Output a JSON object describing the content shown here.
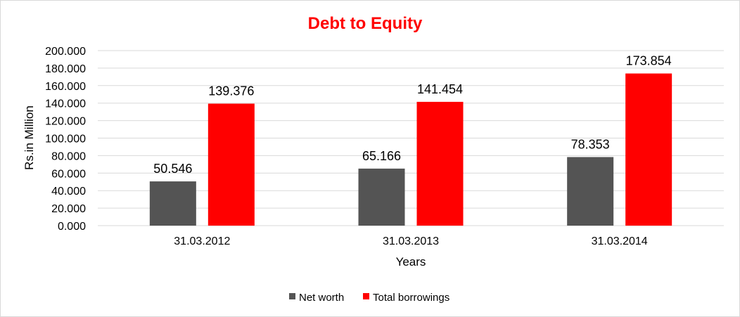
{
  "chart_data": {
    "type": "bar",
    "title": "Debt to Equity",
    "xlabel": "Years",
    "ylabel": "Rs.in Million",
    "categories": [
      "31.03.2012",
      "31.03.2013",
      "31.03.2014"
    ],
    "series": [
      {
        "name": "Net worth",
        "values": [
          50.546,
          65.166,
          78.353
        ],
        "color": "#545454"
      },
      {
        "name": "Total borrowings",
        "values": [
          139.376,
          141.454,
          173.854
        ],
        "color": "#ff0000"
      }
    ],
    "value_labels": [
      [
        "50.546",
        "65.166",
        "78.353"
      ],
      [
        "139.376",
        "141.454",
        "173.854"
      ]
    ],
    "ylim": [
      0,
      200
    ],
    "yticks": [
      "0.000",
      "20.000",
      "40.000",
      "60.000",
      "80.000",
      "100.000",
      "120.000",
      "140.000",
      "160.000",
      "180.000",
      "200.000"
    ],
    "grid": true,
    "legend": "bottom",
    "title_color": "#ff0000",
    "grid_color": "#d9d9d9"
  }
}
